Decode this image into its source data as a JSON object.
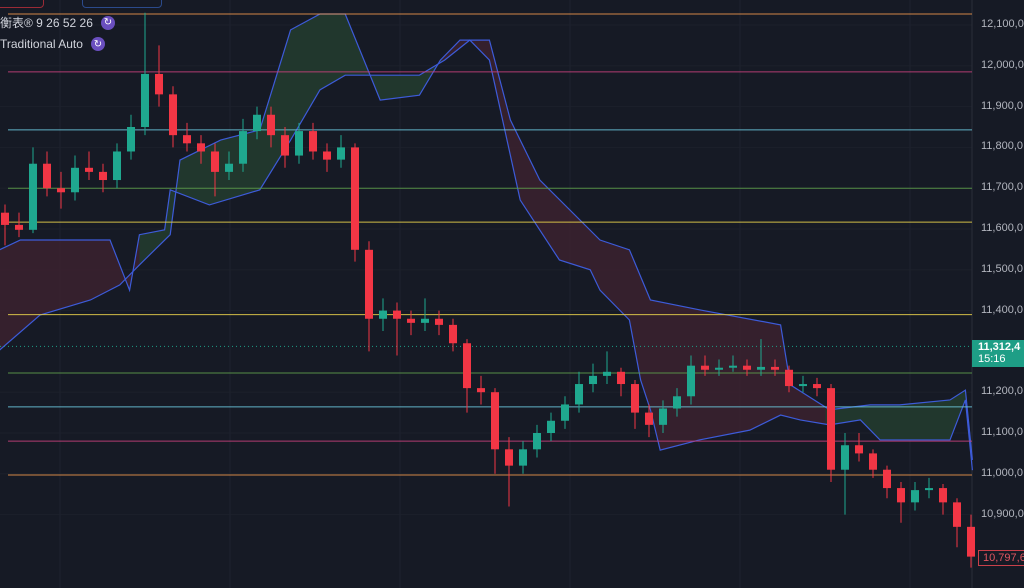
{
  "legend": {
    "indicator": "衡表® 9 26 52 26",
    "pivots": "Traditional Auto",
    "icon": "refresh-icon"
  },
  "price_tag": {
    "price": "11,312,4",
    "countdown": "15:16"
  },
  "last_tag": {
    "price": "10,797,6"
  },
  "colors": {
    "up": "#1fa88f",
    "down": "#f23645",
    "background": "#161a25",
    "cloud_line": "#3d5bd9",
    "cloud_bull": "#1f3a2e",
    "cloud_bear": "#3d2230"
  },
  "chart_data": {
    "type": "candlestick",
    "title": "",
    "ylim": [
      10740,
      12150
    ],
    "y_ticks": [
      {
        "value": 12100,
        "label": "12,100,0"
      },
      {
        "value": 12000,
        "label": "12,000,0"
      },
      {
        "value": 11900,
        "label": "11,900,0"
      },
      {
        "value": 11800,
        "label": "11,800,0"
      },
      {
        "value": 11700,
        "label": "11,700,0"
      },
      {
        "value": 11600,
        "label": "11,600,0"
      },
      {
        "value": 11500,
        "label": "11,500,0"
      },
      {
        "value": 11400,
        "label": "11,400,0"
      },
      {
        "value": 11200,
        "label": "11,200,0"
      },
      {
        "value": 11100,
        "label": "11,100,0"
      },
      {
        "value": 11000,
        "label": "11,000,0"
      },
      {
        "value": 10900,
        "label": "10,900,0"
      }
    ],
    "current_price": 11312.4,
    "candles": [
      [
        11640,
        11660,
        11560,
        11610
      ],
      [
        11610,
        11640,
        11580,
        11598
      ],
      [
        11598,
        11800,
        11590,
        11760
      ],
      [
        11760,
        11790,
        11680,
        11700
      ],
      [
        11700,
        11740,
        11650,
        11690
      ],
      [
        11690,
        11780,
        11670,
        11750
      ],
      [
        11750,
        11790,
        11720,
        11740
      ],
      [
        11740,
        11760,
        11690,
        11720
      ],
      [
        11720,
        11810,
        11700,
        11790
      ],
      [
        11790,
        11880,
        11770,
        11850
      ],
      [
        11850,
        12130,
        11830,
        11980
      ],
      [
        11980,
        12050,
        11900,
        11930
      ],
      [
        11930,
        11950,
        11800,
        11830
      ],
      [
        11830,
        11860,
        11790,
        11810
      ],
      [
        11810,
        11830,
        11760,
        11790
      ],
      [
        11790,
        11810,
        11680,
        11740
      ],
      [
        11740,
        11790,
        11720,
        11760
      ],
      [
        11760,
        11870,
        11740,
        11840
      ],
      [
        11840,
        11900,
        11820,
        11880
      ],
      [
        11880,
        11900,
        11800,
        11830
      ],
      [
        11830,
        11850,
        11750,
        11780
      ],
      [
        11780,
        11860,
        11760,
        11840
      ],
      [
        11840,
        11860,
        11770,
        11790
      ],
      [
        11790,
        11810,
        11740,
        11770
      ],
      [
        11770,
        11830,
        11750,
        11800
      ],
      [
        11800,
        11810,
        11520,
        11549
      ],
      [
        11549,
        11570,
        11300,
        11380
      ],
      [
        11380,
        11430,
        11350,
        11400
      ],
      [
        11400,
        11420,
        11290,
        11380
      ],
      [
        11380,
        11400,
        11340,
        11370
      ],
      [
        11370,
        11430,
        11350,
        11380
      ],
      [
        11380,
        11400,
        11340,
        11365
      ],
      [
        11365,
        11380,
        11300,
        11320
      ],
      [
        11320,
        11330,
        11150,
        11210
      ],
      [
        11210,
        11240,
        11170,
        11200
      ],
      [
        11200,
        11210,
        11000,
        11060
      ],
      [
        11060,
        11090,
        10920,
        11020
      ],
      [
        11020,
        11080,
        11000,
        11060
      ],
      [
        11060,
        11120,
        11040,
        11100
      ],
      [
        11100,
        11150,
        11080,
        11130
      ],
      [
        11130,
        11190,
        11110,
        11170
      ],
      [
        11170,
        11250,
        11150,
        11220
      ],
      [
        11220,
        11270,
        11200,
        11240
      ],
      [
        11240,
        11300,
        11220,
        11250
      ],
      [
        11250,
        11260,
        11190,
        11220
      ],
      [
        11220,
        11230,
        11110,
        11150
      ],
      [
        11150,
        11170,
        11090,
        11120
      ],
      [
        11120,
        11180,
        11100,
        11160
      ],
      [
        11160,
        11210,
        11140,
        11190
      ],
      [
        11190,
        11290,
        11170,
        11265
      ],
      [
        11265,
        11290,
        11240,
        11255
      ],
      [
        11255,
        11280,
        11240,
        11260
      ],
      [
        11260,
        11290,
        11250,
        11265
      ],
      [
        11265,
        11280,
        11240,
        11255
      ],
      [
        11255,
        11330,
        11240,
        11262
      ],
      [
        11262,
        11280,
        11240,
        11255
      ],
      [
        11255,
        11265,
        11200,
        11215
      ],
      [
        11215,
        11240,
        11200,
        11220
      ],
      [
        11220,
        11235,
        11190,
        11210
      ],
      [
        11210,
        11220,
        10980,
        11010
      ],
      [
        11010,
        11100,
        10900,
        11070
      ],
      [
        11070,
        11100,
        11030,
        11050
      ],
      [
        11050,
        11060,
        10990,
        11010
      ],
      [
        11010,
        11020,
        10940,
        10965
      ],
      [
        10965,
        10980,
        10880,
        10930
      ],
      [
        10930,
        10980,
        10910,
        10960
      ],
      [
        10960,
        10990,
        10940,
        10965
      ],
      [
        10965,
        10975,
        10900,
        10930
      ],
      [
        10930,
        10940,
        10820,
        10870
      ],
      [
        10870,
        10900,
        10770,
        10797
      ]
    ],
    "cloud_span_1": [
      [
        -0.4,
        11303
      ],
      [
        2.5,
        11389
      ],
      [
        6.1,
        11426
      ],
      [
        8.2,
        11463
      ],
      [
        9.6,
        11512
      ],
      [
        11.8,
        11586
      ],
      [
        12.5,
        11769
      ],
      [
        15.4,
        11818
      ],
      [
        18.2,
        11843
      ],
      [
        20.4,
        12088
      ],
      [
        22.5,
        12127
      ],
      [
        24.3,
        12127
      ],
      [
        26.8,
        11916
      ],
      [
        29.6,
        11928
      ],
      [
        31.1,
        12014
      ],
      [
        32.5,
        12063
      ],
      [
        34.6,
        12063
      ],
      [
        36.1,
        11867
      ],
      [
        38.2,
        11720
      ],
      [
        42.5,
        11573
      ],
      [
        44.6,
        11549
      ],
      [
        46.1,
        11426
      ],
      [
        49.6,
        11402
      ],
      [
        55.4,
        11365
      ],
      [
        56.1,
        11218
      ],
      [
        58.9,
        11157
      ],
      [
        61.8,
        11169
      ],
      [
        63.9,
        11169
      ],
      [
        67.5,
        11181
      ],
      [
        68.6,
        11205
      ],
      [
        69.1,
        11034
      ]
    ],
    "cloud_span_2": [
      [
        -0.4,
        11549
      ],
      [
        1.1,
        11573
      ],
      [
        7.5,
        11573
      ],
      [
        8.9,
        11450
      ],
      [
        9.6,
        11586
      ],
      [
        11.4,
        11598
      ],
      [
        11.8,
        11696
      ],
      [
        14.6,
        11659
      ],
      [
        18.2,
        11696
      ],
      [
        20.4,
        11818
      ],
      [
        22.5,
        11941
      ],
      [
        24.3,
        11977
      ],
      [
        29.6,
        11977
      ],
      [
        31.4,
        12014
      ],
      [
        33.2,
        12063
      ],
      [
        34.6,
        12014
      ],
      [
        36.8,
        11671
      ],
      [
        39.6,
        11524
      ],
      [
        41.8,
        11500
      ],
      [
        42.5,
        11450
      ],
      [
        44.6,
        11377
      ],
      [
        45.4,
        11230
      ],
      [
        46.1,
        11157
      ],
      [
        46.8,
        11058
      ],
      [
        49.6,
        11083
      ],
      [
        53.2,
        11107
      ],
      [
        55.4,
        11144
      ],
      [
        56.8,
        11132
      ],
      [
        58.9,
        11120
      ],
      [
        61.1,
        11132
      ],
      [
        62.5,
        11083
      ],
      [
        67.5,
        11083
      ],
      [
        68.6,
        11181
      ],
      [
        69.1,
        11009
      ]
    ],
    "bullish_cloud_ranges": [
      [
        9.6,
        31.2
      ],
      [
        58.6,
        69.1
      ]
    ],
    "pivot_levels": [
      {
        "value": 12127,
        "color": "#e8934a"
      },
      {
        "value": 11985,
        "color": "#c2407a"
      },
      {
        "value": 11843,
        "color": "#6ac3d8"
      },
      {
        "value": 11700,
        "color": "#5c9a4a"
      },
      {
        "value": 11617,
        "color": "#e6cf4a"
      },
      {
        "value": 11390,
        "color": "#e6cf4a"
      },
      {
        "value": 11247,
        "color": "#5c9a4a"
      },
      {
        "value": 11164,
        "color": "#6ac3d8"
      },
      {
        "value": 11080,
        "color": "#c2407a"
      },
      {
        "value": 10997,
        "color": "#e8934a"
      }
    ]
  }
}
